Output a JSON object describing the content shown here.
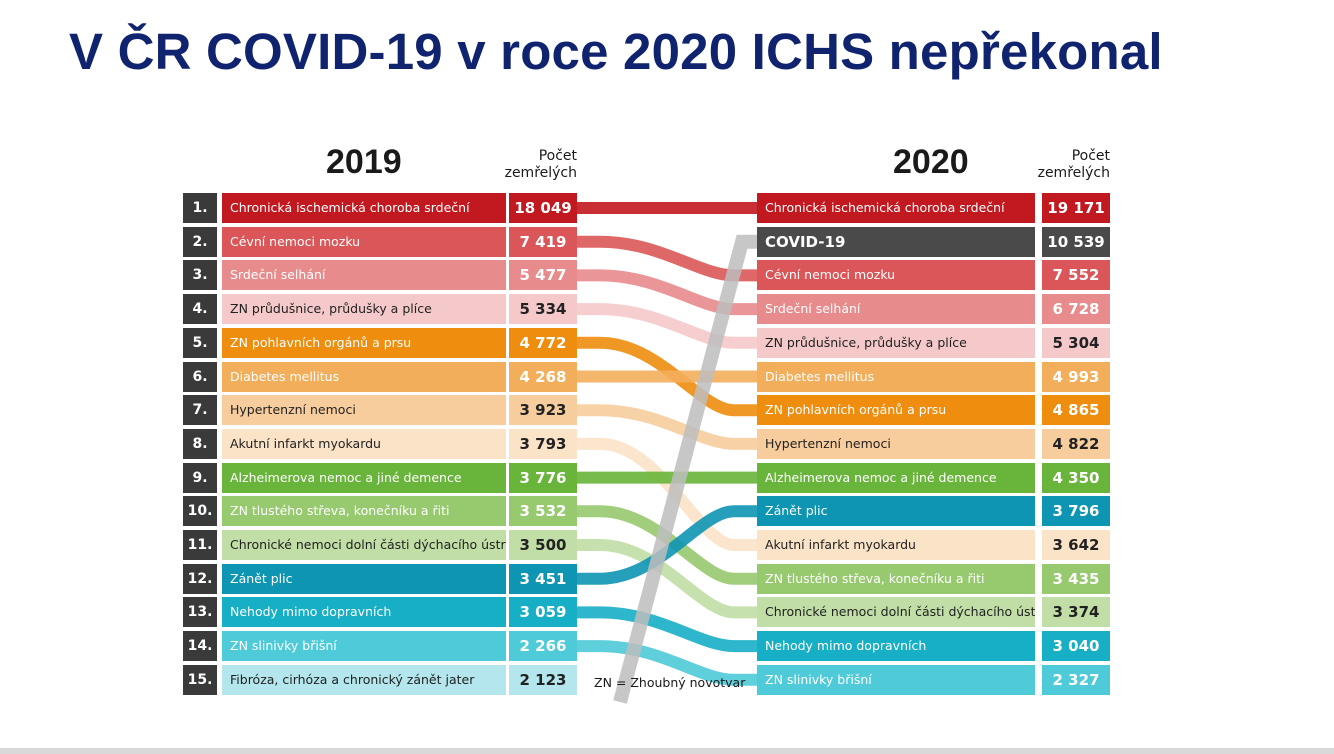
{
  "title": "V ČR COVID-19 v roce 2020 ICHS nepřekonal",
  "count_header_line1": "Počet",
  "count_header_line2": "zemřelých",
  "footnote": "ZN = Zhoubný novotvar",
  "colors": {
    "title": "#10236e",
    "rank_box": "#3a3a3a",
    "background": "#ffffff"
  },
  "chart_data": {
    "type": "table",
    "years": [
      "2019",
      "2020"
    ],
    "ranks": [
      "1.",
      "2.",
      "3.",
      "4.",
      "5.",
      "6.",
      "7.",
      "8.",
      "9.",
      "10.",
      "11.",
      "12.",
      "13.",
      "14.",
      "15."
    ],
    "causes": [
      {
        "key": "ichs",
        "label": "Chronická ischemická choroba srdeční",
        "color": "#c2181f",
        "text": "#ffffff",
        "rank2019": 1,
        "value2019": "18 049",
        "rank2020": 1,
        "value2020": "19 171"
      },
      {
        "key": "covid",
        "label": "COVID-19",
        "color": "#4a4a4a",
        "text": "#ffffff",
        "rank2019": null,
        "value2019": null,
        "rank2020": 2,
        "value2020": "10 539"
      },
      {
        "key": "cevni",
        "label": "Cévní nemoci mozku",
        "color": "#da5658",
        "text": "#ffffff",
        "rank2019": 2,
        "value2019": "7 419",
        "rank2020": 3,
        "value2020": "7 552"
      },
      {
        "key": "selhani",
        "label": "Srdeční selhání",
        "color": "#e88b8d",
        "text": "#ffffff",
        "rank2019": 3,
        "value2019": "5 477",
        "rank2020": 4,
        "value2020": "6 728"
      },
      {
        "key": "plice",
        "label": "ZN průdušnice, průdušky a plíce",
        "color": "#f5c9ca",
        "text": "#222222",
        "rank2019": 4,
        "value2019": "5 334",
        "rank2020": 5,
        "value2020": "5 304"
      },
      {
        "key": "pohlavni",
        "label": "ZN pohlavních orgánů a prsu",
        "color": "#ee8d0e",
        "text": "#ffffff",
        "rank2019": 5,
        "value2019": "4 772",
        "rank2020": 7,
        "value2020": "4 865"
      },
      {
        "key": "diabetes",
        "label": "Diabetes mellitus",
        "color": "#f3ae5b",
        "text": "#ffffff",
        "rank2019": 6,
        "value2019": "4 268",
        "rank2020": 6,
        "value2020": "4 993"
      },
      {
        "key": "hypert",
        "label": "Hypertenzní nemoci",
        "color": "#f7cd9d",
        "text": "#222222",
        "rank2019": 7,
        "value2019": "3 923",
        "rank2020": 8,
        "value2020": "4 822"
      },
      {
        "key": "infarkt",
        "label": "Akutní infarkt myokardu",
        "color": "#fbe3c8",
        "text": "#222222",
        "rank2019": 8,
        "value2019": "3 793",
        "rank2020": 11,
        "value2020": "3 642"
      },
      {
        "key": "alzheimer",
        "label": "Alzheimerova nemoc a jiné demence",
        "color": "#69b43a",
        "text": "#ffffff",
        "rank2019": 9,
        "value2019": "3 776",
        "rank2020": 9,
        "value2020": "4 350"
      },
      {
        "key": "streva",
        "label": "ZN tlustého střeva, konečníku a řiti",
        "color": "#97c96f",
        "text": "#ffffff",
        "rank2019": 10,
        "value2019": "3 532",
        "rank2020": 12,
        "value2020": "3 435"
      },
      {
        "key": "dychaci",
        "label": "Chronické nemoci dolní části dýchacího ústrojí",
        "color": "#c0dea5",
        "text": "#222222",
        "rank2019": 11,
        "value2019": "3 500",
        "rank2020": 13,
        "value2020": "3 374"
      },
      {
        "key": "zanet",
        "label": "Zánět plic",
        "color": "#0e95b3",
        "text": "#ffffff",
        "rank2019": 12,
        "value2019": "3 451",
        "rank2020": 10,
        "value2020": "3 796"
      },
      {
        "key": "nehody",
        "label": "Nehody mimo dopravních",
        "color": "#17afc6",
        "text": "#ffffff",
        "rank2019": 13,
        "value2019": "3 059",
        "rank2020": 14,
        "value2020": "3 040"
      },
      {
        "key": "slinivka",
        "label": "ZN slinivky břišní",
        "color": "#4ecad8",
        "text": "#ffffff",
        "rank2019": 14,
        "value2019": "2 266",
        "rank2020": 15,
        "value2020": "2 327"
      },
      {
        "key": "jatra",
        "label": "Fibróza, cirhóza a chronický zánět jater",
        "color": "#b3e6ed",
        "text": "#222222",
        "rank2019": 15,
        "value2019": "2 123",
        "rank2020": null,
        "value2020": null
      }
    ]
  }
}
